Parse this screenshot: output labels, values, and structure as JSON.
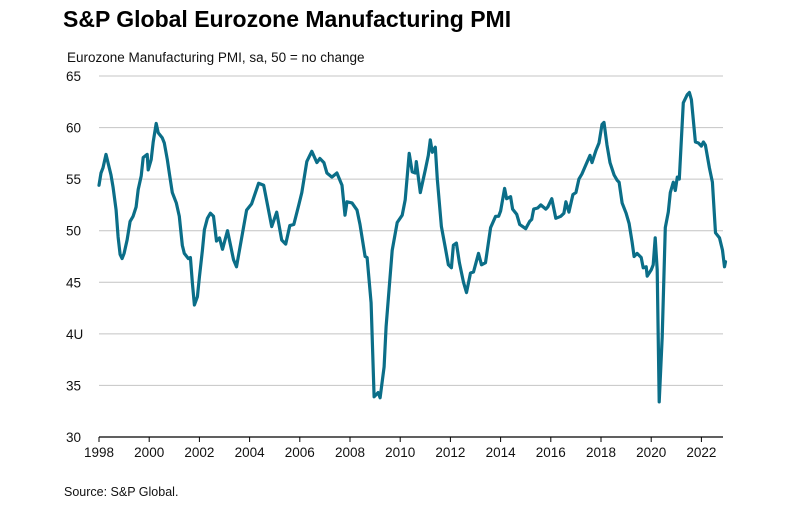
{
  "header": {
    "title": "S&P Global Eurozone Manufacturing PMI",
    "subtitle": "Eurozone Manufacturing PMI, sa, 50 = no change"
  },
  "footer": {
    "source": "Source: S&P Global."
  },
  "colors": {
    "line": "#0b6e88",
    "grid": "#c4c4c4",
    "axis": "#000000"
  },
  "chart_data": {
    "type": "line",
    "title": "S&P Global Eurozone Manufacturing PMI",
    "ylabel": "Eurozone Manufacturing PMI, sa, 50 = no change",
    "xlabel": "",
    "ylim": [
      30,
      65
    ],
    "xlim": [
      1998,
      2022.9
    ],
    "grid": true,
    "legend": "none",
    "y_ticks": [
      "30",
      "35",
      "4U",
      "45",
      "50",
      "55",
      "60",
      "65"
    ],
    "y_tick_values": [
      30,
      35,
      40,
      45,
      50,
      55,
      60,
      65
    ],
    "x_ticks": [
      "1998",
      "2000",
      "2002",
      "2004",
      "2006",
      "2008",
      "2010",
      "2012",
      "2014",
      "2016",
      "2018",
      "2020",
      "2022"
    ],
    "x_tick_values": [
      1998,
      2000,
      2002,
      2004,
      2006,
      2008,
      2010,
      2012,
      2014,
      2016,
      2018,
      2020,
      2022
    ],
    "series": [
      {
        "name": "Eurozone Manufacturing PMI",
        "points": [
          [
            1998.0,
            54.4
          ],
          [
            1998.08,
            55.6
          ],
          [
            1998.16,
            56.1
          ],
          [
            1998.28,
            57.4
          ],
          [
            1998.36,
            56.6
          ],
          [
            1998.48,
            55.4
          ],
          [
            1998.56,
            54.2
          ],
          [
            1998.68,
            52.0
          ],
          [
            1998.76,
            49.4
          ],
          [
            1998.84,
            47.7
          ],
          [
            1998.92,
            47.3
          ],
          [
            1999.0,
            47.8
          ],
          [
            1999.12,
            49.1
          ],
          [
            1999.24,
            50.9
          ],
          [
            1999.36,
            51.4
          ],
          [
            1999.48,
            52.3
          ],
          [
            1999.56,
            54.0
          ],
          [
            1999.68,
            55.3
          ],
          [
            1999.76,
            57.1
          ],
          [
            1999.92,
            57.4
          ],
          [
            1999.96,
            55.9
          ],
          [
            2000.08,
            56.9
          ],
          [
            2000.16,
            58.6
          ],
          [
            2000.28,
            60.4
          ],
          [
            2000.36,
            59.5
          ],
          [
            2000.52,
            59.0
          ],
          [
            2000.6,
            58.5
          ],
          [
            2000.72,
            56.9
          ],
          [
            2000.8,
            55.6
          ],
          [
            2000.92,
            53.7
          ],
          [
            2001.08,
            52.7
          ],
          [
            2001.2,
            51.4
          ],
          [
            2001.32,
            48.6
          ],
          [
            2001.4,
            47.8
          ],
          [
            2001.56,
            47.3
          ],
          [
            2001.64,
            47.4
          ],
          [
            2001.72,
            44.9
          ],
          [
            2001.8,
            42.8
          ],
          [
            2001.92,
            43.6
          ],
          [
            2002.0,
            45.5
          ],
          [
            2002.12,
            48.1
          ],
          [
            2002.2,
            50.1
          ],
          [
            2002.32,
            51.2
          ],
          [
            2002.44,
            51.7
          ],
          [
            2002.56,
            51.4
          ],
          [
            2002.68,
            49.0
          ],
          [
            2002.8,
            49.3
          ],
          [
            2002.92,
            48.2
          ],
          [
            2003.12,
            50.0
          ],
          [
            2003.36,
            47.2
          ],
          [
            2003.48,
            46.5
          ],
          [
            2003.88,
            52.0
          ],
          [
            2004.08,
            52.6
          ],
          [
            2004.36,
            54.6
          ],
          [
            2004.56,
            54.4
          ],
          [
            2004.88,
            50.4
          ],
          [
            2005.08,
            51.8
          ],
          [
            2005.28,
            49.1
          ],
          [
            2005.44,
            48.7
          ],
          [
            2005.6,
            50.5
          ],
          [
            2005.76,
            50.6
          ],
          [
            2005.96,
            52.5
          ],
          [
            2006.08,
            53.7
          ],
          [
            2006.28,
            56.7
          ],
          [
            2006.48,
            57.7
          ],
          [
            2006.68,
            56.6
          ],
          [
            2006.8,
            57.0
          ],
          [
            2006.96,
            56.6
          ],
          [
            2007.08,
            55.6
          ],
          [
            2007.28,
            55.2
          ],
          [
            2007.48,
            55.6
          ],
          [
            2007.68,
            54.4
          ],
          [
            2007.8,
            51.5
          ],
          [
            2007.88,
            52.8
          ],
          [
            2008.08,
            52.7
          ],
          [
            2008.28,
            52.0
          ],
          [
            2008.4,
            50.6
          ],
          [
            2008.6,
            47.5
          ],
          [
            2008.68,
            47.4
          ],
          [
            2008.84,
            43.0
          ],
          [
            2008.96,
            33.9
          ],
          [
            2009.12,
            34.3
          ],
          [
            2009.2,
            33.8
          ],
          [
            2009.36,
            36.8
          ],
          [
            2009.44,
            40.7
          ],
          [
            2009.68,
            48.1
          ],
          [
            2009.88,
            50.8
          ],
          [
            2010.08,
            51.5
          ],
          [
            2010.2,
            53.0
          ],
          [
            2010.36,
            57.5
          ],
          [
            2010.48,
            55.7
          ],
          [
            2010.6,
            55.6
          ],
          [
            2010.64,
            56.7
          ],
          [
            2010.8,
            53.7
          ],
          [
            2011.0,
            55.9
          ],
          [
            2011.12,
            57.3
          ],
          [
            2011.2,
            58.8
          ],
          [
            2011.28,
            57.6
          ],
          [
            2011.4,
            58.1
          ],
          [
            2011.48,
            55.0
          ],
          [
            2011.64,
            50.4
          ],
          [
            2011.8,
            48.3
          ],
          [
            2011.92,
            46.7
          ],
          [
            2012.04,
            46.4
          ],
          [
            2012.12,
            48.6
          ],
          [
            2012.24,
            48.8
          ],
          [
            2012.36,
            46.9
          ],
          [
            2012.52,
            45.0
          ],
          [
            2012.64,
            44.0
          ],
          [
            2012.8,
            45.9
          ],
          [
            2012.92,
            46.0
          ],
          [
            2013.12,
            47.8
          ],
          [
            2013.24,
            46.7
          ],
          [
            2013.4,
            46.9
          ],
          [
            2013.6,
            50.3
          ],
          [
            2013.8,
            51.4
          ],
          [
            2013.92,
            51.4
          ],
          [
            2014.0,
            51.9
          ],
          [
            2014.16,
            54.1
          ],
          [
            2014.24,
            53.1
          ],
          [
            2014.4,
            53.3
          ],
          [
            2014.48,
            52.1
          ],
          [
            2014.64,
            51.6
          ],
          [
            2014.76,
            50.6
          ],
          [
            2014.88,
            50.4
          ],
          [
            2015.0,
            50.2
          ],
          [
            2015.16,
            50.9
          ],
          [
            2015.24,
            51.1
          ],
          [
            2015.32,
            52.1
          ],
          [
            2015.48,
            52.2
          ],
          [
            2015.6,
            52.5
          ],
          [
            2015.8,
            52.1
          ],
          [
            2015.88,
            52.3
          ],
          [
            2016.04,
            53.1
          ],
          [
            2016.2,
            51.2
          ],
          [
            2016.4,
            51.4
          ],
          [
            2016.52,
            51.7
          ],
          [
            2016.6,
            52.8
          ],
          [
            2016.72,
            51.8
          ],
          [
            2016.88,
            53.5
          ],
          [
            2017.0,
            53.7
          ],
          [
            2017.12,
            55.0
          ],
          [
            2017.24,
            55.5
          ],
          [
            2017.4,
            56.4
          ],
          [
            2017.56,
            57.3
          ],
          [
            2017.64,
            56.6
          ],
          [
            2017.8,
            57.8
          ],
          [
            2017.92,
            58.5
          ],
          [
            2018.04,
            60.3
          ],
          [
            2018.12,
            60.5
          ],
          [
            2018.24,
            58.3
          ],
          [
            2018.36,
            56.6
          ],
          [
            2018.52,
            55.4
          ],
          [
            2018.64,
            54.9
          ],
          [
            2018.72,
            54.7
          ],
          [
            2018.84,
            52.7
          ],
          [
            2019.0,
            51.7
          ],
          [
            2019.12,
            50.7
          ],
          [
            2019.24,
            48.9
          ],
          [
            2019.32,
            47.5
          ],
          [
            2019.44,
            47.8
          ],
          [
            2019.6,
            47.4
          ],
          [
            2019.68,
            46.4
          ],
          [
            2019.8,
            46.5
          ],
          [
            2019.84,
            45.6
          ],
          [
            2020.0,
            46.2
          ],
          [
            2020.08,
            46.7
          ],
          [
            2020.16,
            49.3
          ],
          [
            2020.24,
            46.2
          ],
          [
            2020.32,
            33.4
          ],
          [
            2020.44,
            39.7
          ],
          [
            2020.56,
            50.3
          ],
          [
            2020.68,
            51.8
          ],
          [
            2020.76,
            53.7
          ],
          [
            2020.88,
            54.7
          ],
          [
            2020.96,
            53.9
          ],
          [
            2021.04,
            55.2
          ],
          [
            2021.12,
            55.0
          ],
          [
            2021.28,
            62.4
          ],
          [
            2021.44,
            63.2
          ],
          [
            2021.52,
            63.4
          ],
          [
            2021.6,
            62.7
          ],
          [
            2021.76,
            58.6
          ],
          [
            2021.88,
            58.5
          ],
          [
            2022.0,
            58.2
          ],
          [
            2022.08,
            58.6
          ],
          [
            2022.16,
            58.3
          ],
          [
            2022.32,
            56.1
          ],
          [
            2022.44,
            54.7
          ],
          [
            2022.56,
            49.8
          ],
          [
            2022.72,
            49.3
          ],
          [
            2022.84,
            48.1
          ],
          [
            2022.92,
            46.5
          ],
          [
            2022.96,
            47.0
          ]
        ]
      }
    ]
  }
}
